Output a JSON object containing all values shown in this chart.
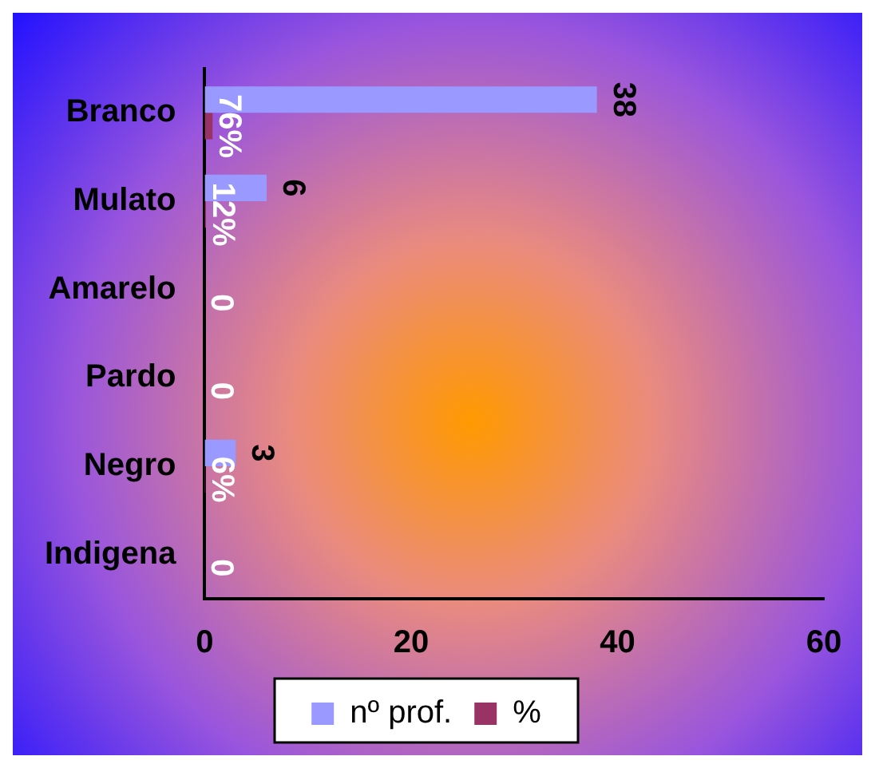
{
  "chart_data": {
    "type": "bar",
    "orientation": "horizontal",
    "categories": [
      "Branco",
      "Mulato",
      "Amarelo",
      "Pardo",
      "Negro",
      "Indigena"
    ],
    "series": [
      {
        "name": "nº prof.",
        "color": "#9999ff",
        "values": [
          38,
          6,
          0,
          0,
          3,
          0
        ],
        "value_labels": [
          "38",
          "6",
          null,
          null,
          "3",
          null
        ]
      },
      {
        "name": "%",
        "color": "#993366",
        "values": [
          0.76,
          0.12,
          0,
          0,
          0.06,
          0
        ],
        "value_labels": [
          "76%",
          "12%",
          "0",
          "0",
          "6%",
          "0"
        ]
      }
    ],
    "xlim": [
      0,
      60
    ],
    "xticks": [
      0,
      20,
      40,
      60
    ],
    "grid": false,
    "legend": "bottom"
  }
}
